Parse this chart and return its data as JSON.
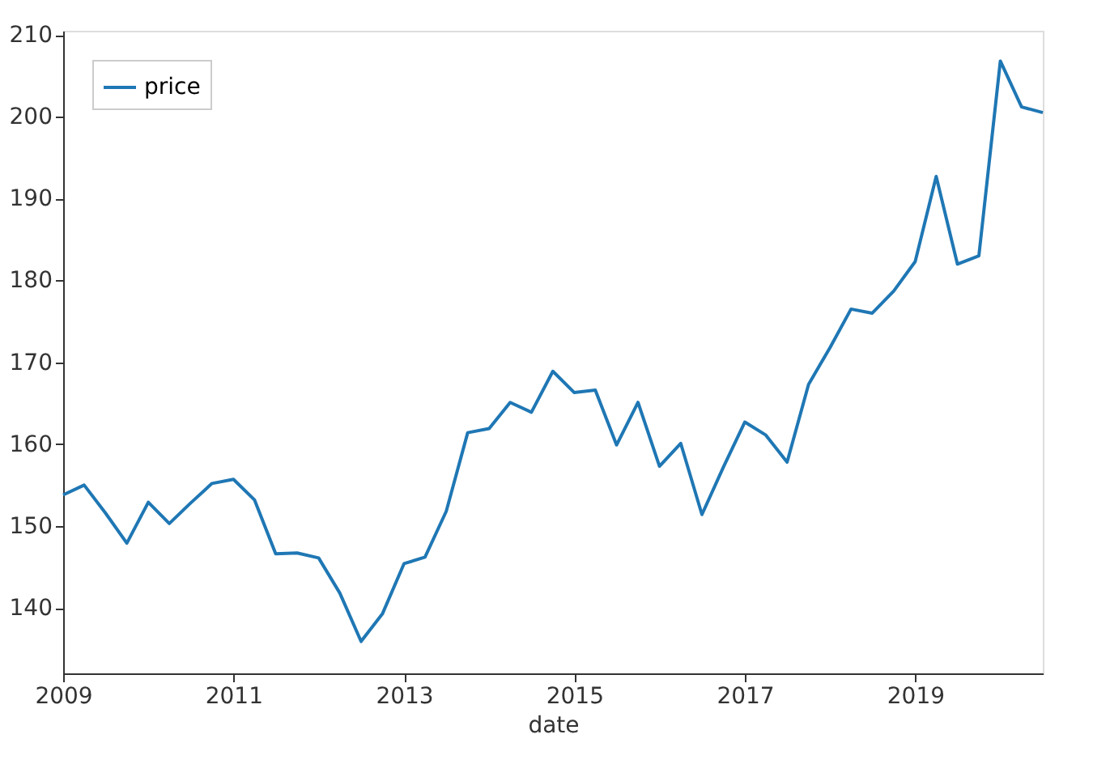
{
  "chart_data": {
    "type": "line",
    "xlabel": "date",
    "x": [
      "2009-01",
      "2009-04",
      "2009-07",
      "2009-10",
      "2010-01",
      "2010-04",
      "2010-07",
      "2010-10",
      "2011-01",
      "2011-04",
      "2011-07",
      "2011-10",
      "2012-01",
      "2012-04",
      "2012-07",
      "2012-10",
      "2013-01",
      "2013-04",
      "2013-07",
      "2013-10",
      "2014-01",
      "2014-04",
      "2014-07",
      "2014-10",
      "2015-01",
      "2015-04",
      "2015-07",
      "2015-10",
      "2016-01",
      "2016-04",
      "2016-07",
      "2016-10",
      "2017-01",
      "2017-04",
      "2017-07",
      "2017-10",
      "2018-01",
      "2018-04",
      "2018-07",
      "2018-10",
      "2019-01",
      "2019-04",
      "2019-07",
      "2019-10",
      "2020-01",
      "2020-04",
      "2020-07"
    ],
    "series": [
      {
        "name": "price",
        "color": "#1f77b4",
        "values": [
          153.8,
          155,
          151.6,
          147.9,
          152.9,
          150.3,
          152.8,
          155.2,
          155.7,
          153.2,
          146.6,
          146.7,
          146.1,
          141.8,
          135.9,
          139.3,
          145.4,
          146.2,
          151.8,
          161.4,
          161.9,
          165.1,
          163.9,
          168.9,
          166.3,
          166.6,
          159.9,
          165.1,
          157.3,
          160.1,
          151.4,
          157.2,
          162.7,
          161.1,
          157.8,
          167.3,
          171.8,
          176.5,
          176,
          178.7,
          182.3,
          192.7,
          182,
          183,
          206.8,
          201.2,
          200.5
        ]
      }
    ],
    "xlim": [
      "2009-01",
      "2020-07"
    ],
    "xticks": [
      "2009",
      "2011",
      "2013",
      "2015",
      "2017",
      "2019"
    ],
    "ylim": [
      132,
      210.5
    ],
    "yticks": [
      140,
      150,
      160,
      170,
      180,
      190,
      200,
      210
    ],
    "grid": false,
    "legend": "top left",
    "line_style": "solid",
    "marker": "none"
  }
}
